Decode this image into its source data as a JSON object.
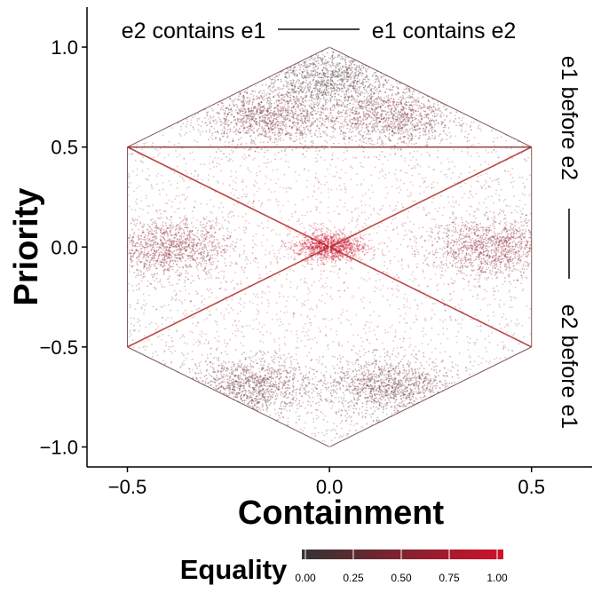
{
  "chart_data": {
    "type": "scatter",
    "title": "",
    "xlabel": "Containment",
    "ylabel": "Priority",
    "xlim": [
      -0.6,
      0.65
    ],
    "ylim": [
      -1.1,
      1.2
    ],
    "x_ticks": [
      -0.5,
      0.0,
      0.5
    ],
    "x_tick_labels": [
      "−0.5",
      "0.0",
      "0.5"
    ],
    "y_ticks": [
      -1.0,
      -0.5,
      0.0,
      0.5,
      1.0
    ],
    "y_tick_labels": [
      "−1.0",
      "−0.5",
      "0.0",
      "0.5",
      "1.0"
    ],
    "grid": false,
    "annotations": {
      "top_left": "e2 contains e1",
      "top_right": "e1 contains e2",
      "right_upper": "e1 before e2",
      "right_lower": "e2 before e1"
    },
    "hexagon_vertices": [
      [
        0.0,
        1.0
      ],
      [
        0.5,
        0.5
      ],
      [
        0.5,
        -0.5
      ],
      [
        0.0,
        -1.0
      ],
      [
        -0.5,
        -0.5
      ],
      [
        -0.5,
        0.5
      ]
    ],
    "color_legend": {
      "title": "Equality",
      "min": 0.0,
      "max": 1.0,
      "ticks": [
        0.0,
        0.25,
        0.5,
        0.75,
        1.0
      ],
      "tick_labels": [
        "0.00",
        "0.25",
        "0.50",
        "0.75",
        "1.00"
      ],
      "low_color": "#333333",
      "high_color": "#d0112b",
      "placement": "bottom"
    },
    "density_clusters": [
      {
        "x": -0.4,
        "y": 0.0,
        "equality": 0.55
      },
      {
        "x": 0.4,
        "y": 0.0,
        "equality": 0.55
      },
      {
        "x": 0.0,
        "y": 0.0,
        "equality": 1.0
      },
      {
        "x": -0.15,
        "y": 0.65,
        "equality": 0.4
      },
      {
        "x": 0.15,
        "y": 0.65,
        "equality": 0.4
      },
      {
        "x": 0.0,
        "y": 0.85,
        "equality": 0.15
      },
      {
        "x": -0.2,
        "y": -0.7,
        "equality": 0.3
      },
      {
        "x": 0.15,
        "y": -0.7,
        "equality": 0.3
      }
    ]
  }
}
